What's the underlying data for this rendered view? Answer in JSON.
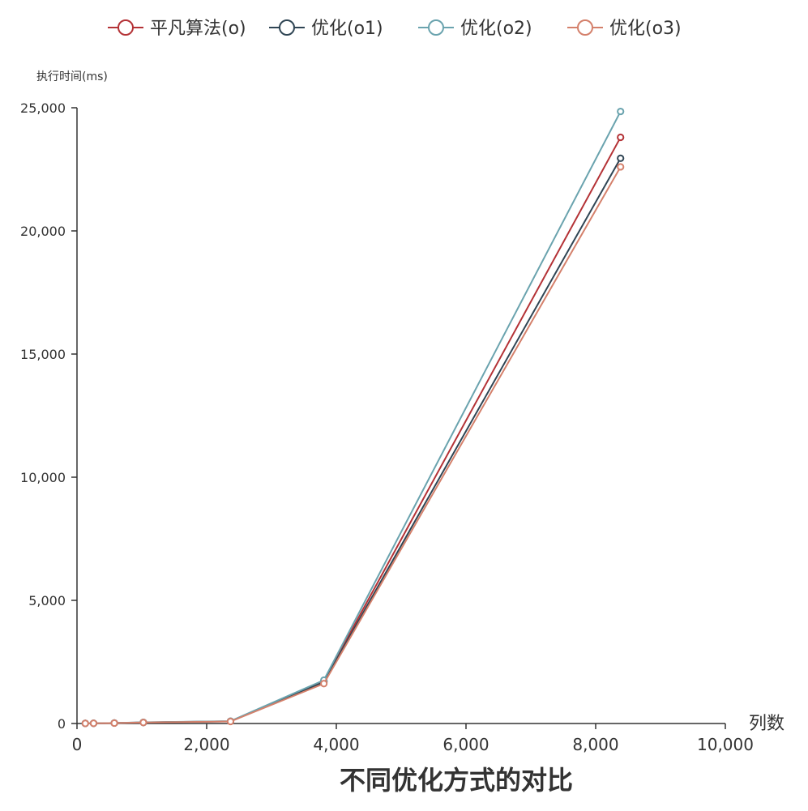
{
  "chart_data": {
    "type": "line",
    "title": "不同优化方式的对比",
    "xlabel": "列数",
    "ylabel": "执行时间(ms)",
    "xlim": [
      0,
      10000
    ],
    "ylim": [
      0,
      25000
    ],
    "x_ticks": [
      "0",
      "2,000",
      "4,000",
      "6,000",
      "8,000",
      "10,000"
    ],
    "y_ticks": [
      "0",
      "5,000",
      "10,000",
      "15,000",
      "20,000",
      "25,000"
    ],
    "grid": false,
    "legend_position": "top",
    "series": [
      {
        "name": "平凡算法(o)",
        "color": "#b43236",
        "points": [
          [
            128,
            5
          ],
          [
            256,
            10
          ],
          [
            576,
            20
          ],
          [
            1024,
            45
          ],
          [
            2368,
            90
          ],
          [
            3808,
            1720
          ],
          [
            8384,
            23800
          ]
        ]
      },
      {
        "name": "优化(o1)",
        "color": "#2f4554",
        "points": [
          [
            128,
            4
          ],
          [
            256,
            9
          ],
          [
            576,
            18
          ],
          [
            1024,
            42
          ],
          [
            2368,
            85
          ],
          [
            3808,
            1680
          ],
          [
            8384,
            22950
          ]
        ]
      },
      {
        "name": "优化(o2)",
        "color": "#6aa3ae",
        "points": [
          [
            128,
            5
          ],
          [
            256,
            10
          ],
          [
            576,
            21
          ],
          [
            1024,
            48
          ],
          [
            2368,
            95
          ],
          [
            3808,
            1760
          ],
          [
            8384,
            24850
          ]
        ]
      },
      {
        "name": "优化(o3)",
        "color": "#d4806b",
        "points": [
          [
            128,
            4
          ],
          [
            256,
            9
          ],
          [
            576,
            17
          ],
          [
            1024,
            40
          ],
          [
            2368,
            82
          ],
          [
            3808,
            1620
          ],
          [
            8384,
            22600
          ]
        ]
      }
    ]
  }
}
